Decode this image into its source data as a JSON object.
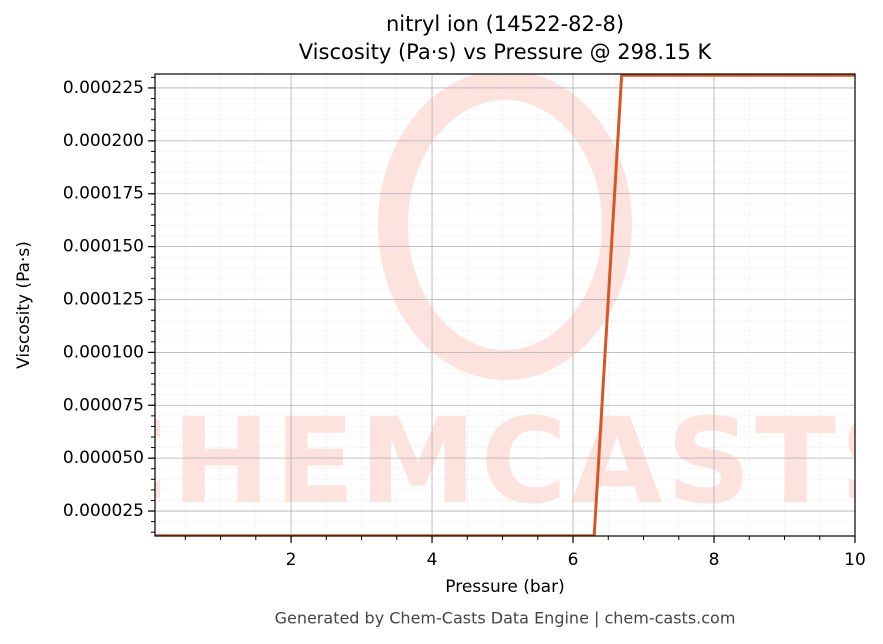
{
  "chart_data": {
    "type": "line",
    "title": "nitryl ion (14522-82-8)",
    "subtitle": "Viscosity (Pa·s) vs Pressure @ 298.15 K",
    "x_label": "Pressure (bar)",
    "y_label": "Viscosity (Pa·s)",
    "watermark": "CHEMCASTS",
    "footer": "Generated by Chem-Casts Data Engine | chem-casts.com",
    "x": [
      0.07,
      6.3,
      6.69,
      10
    ],
    "series": [
      {
        "name": "Viscosity",
        "color": "#d95525",
        "values": [
          1.33e-05,
          1.33e-05,
          0.000231,
          0.000231
        ]
      }
    ],
    "xlim": [
      0.07,
      10
    ],
    "ylim": [
      1.32e-05,
      0.0002316
    ],
    "xticks": [
      2,
      4,
      6,
      8,
      10
    ],
    "yticks": [
      2.5e-05,
      {
        "value": 5e-05,
        "label": "0.000050"
      },
      7.5e-05,
      {
        "value": 0.0001,
        "label": "0.000100"
      },
      0.000125,
      {
        "value": 0.00015,
        "label": "0.000150"
      },
      0.000175,
      {
        "value": 0.0002,
        "label": "0.000200"
      },
      0.000225
    ],
    "grid": true
  }
}
